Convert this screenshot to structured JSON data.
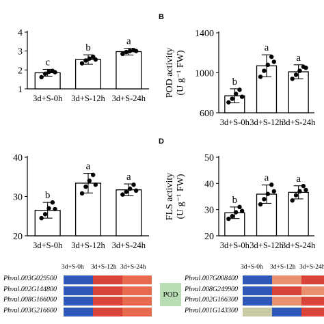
{
  "chart_data": [
    {
      "type": "bar",
      "panel_label": "",
      "ylabel": "",
      "categories": [
        "3d+S-0h",
        "3d+S-12h",
        "3d+S-24h"
      ],
      "values": [
        1.85,
        2.55,
        2.97
      ],
      "errors": [
        0.18,
        0.25,
        0.18
      ],
      "letters": [
        "c",
        "b",
        "a"
      ],
      "points": [
        [
          1.62,
          1.8,
          1.9,
          1.95,
          1.88
        ],
        [
          2.35,
          2.5,
          2.6,
          2.7,
          2.55
        ],
        [
          2.85,
          2.95,
          3.0,
          3.05,
          3.0
        ]
      ],
      "ylim": [
        1,
        4
      ],
      "yticks": [
        1,
        2,
        3,
        4
      ]
    },
    {
      "type": "bar",
      "panel_label": "B",
      "ylabel": "POD activity",
      "ylabel2": "(U g⁻¹ FW)",
      "categories": [
        "3d+S-0h",
        "3d+S-12h",
        "3d+S-24h"
      ],
      "values": [
        770,
        1070,
        1010
      ],
      "errors": [
        70,
        110,
        70
      ],
      "letters": [
        "b",
        "a",
        "a"
      ],
      "points": [
        [
          705,
          740,
          790,
          830,
          760
        ],
        [
          960,
          1020,
          1080,
          1160,
          1110
        ],
        [
          940,
          980,
          1020,
          1060,
          1050
        ]
      ],
      "ylim": [
        600,
        1400
      ],
      "yticks": [
        600,
        1000,
        1400
      ]
    },
    {
      "type": "bar",
      "panel_label": "",
      "ylabel": "",
      "categories": [
        "3d+S-0h",
        "3d+S-12h",
        "3d+S-24h"
      ],
      "values": [
        26.5,
        33.4,
        31.7
      ],
      "errors": [
        2.0,
        2.5,
        1.5
      ],
      "letters": [
        "b",
        "a",
        "a"
      ],
      "points": [
        [
          24.5,
          25.5,
          27.0,
          28.5,
          26.8
        ],
        [
          30.8,
          32.5,
          34.0,
          35.5,
          33.0
        ],
        [
          30.5,
          31.2,
          32.0,
          33.0,
          31.5
        ]
      ],
      "ylim": [
        20,
        40
      ],
      "yticks": [
        20,
        30,
        40
      ]
    },
    {
      "type": "bar",
      "panel_label": "D",
      "ylabel": "FLS activity",
      "ylabel2": "(U g⁻¹ FW)",
      "categories": [
        "3d+S-0h",
        "3d+S-12h",
        "3d+S-24h"
      ],
      "values": [
        28.8,
        35.9,
        36.6
      ],
      "errors": [
        2.2,
        3.5,
        2.5
      ],
      "letters": [
        "b",
        "a",
        "a"
      ],
      "points": [
        [
          26.5,
          27.5,
          29.0,
          31.0,
          29.5
        ],
        [
          32.0,
          34.0,
          36.0,
          39.5,
          37.0
        ],
        [
          33.5,
          35.5,
          37.0,
          39.0,
          37.5
        ]
      ],
      "ylim": [
        20,
        50
      ],
      "yticks": [
        20,
        30,
        40,
        50
      ]
    }
  ],
  "heatmap": {
    "columns": [
      "3d+S-0h",
      "3d+S-12h",
      "3d+S-24h"
    ],
    "left_genes": [
      "Phvul.003G029500",
      "Phvul.002G144800",
      "Phvul.008G166000",
      "Phvul.003G216600"
    ],
    "left_colors": [
      [
        "#2f57b8",
        "#d9443a",
        "#e76a4f"
      ],
      [
        "#2f57b8",
        "#d9443a",
        "#e76a4f"
      ],
      [
        "#2f57b8",
        "#d9443a",
        "#e76a4f"
      ],
      [
        "#2f57b8",
        "#d9443a",
        "#e76a4f"
      ]
    ],
    "group_label": "POD",
    "right_genes": [
      "Phvul.007G008400",
      "Phvul.008G249900",
      "Phvul.002G166300",
      "Phvul.001G143300"
    ],
    "right_colors": [
      [
        "#2f57b8",
        "#e9906e",
        "#d9443a"
      ],
      [
        "#2f57b8",
        "#d9443a",
        "#e9906e"
      ],
      [
        "#2f57b8",
        "#e9906e",
        "#d9443a"
      ],
      [
        "#c9c9a3",
        "#2f57b8",
        "#d9443a"
      ]
    ]
  }
}
